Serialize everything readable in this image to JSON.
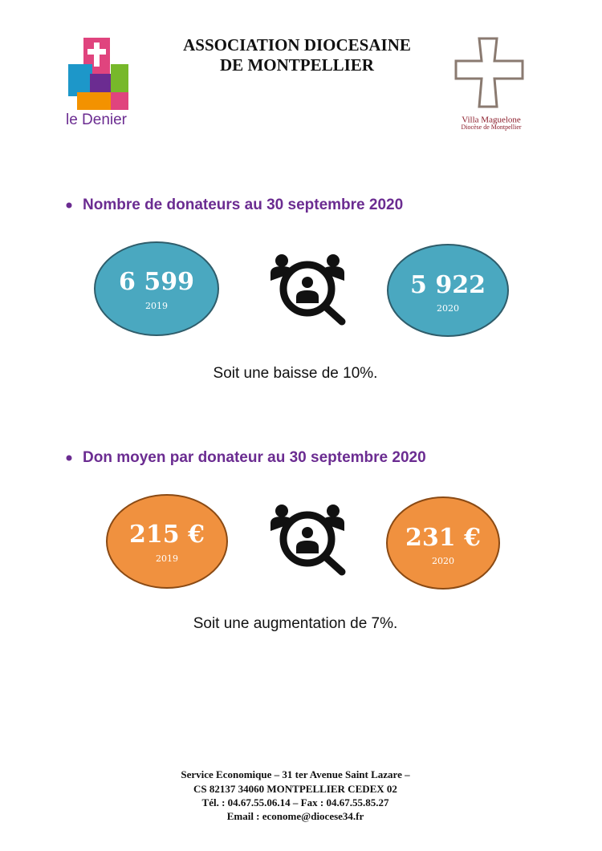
{
  "header": {
    "title_lines": [
      "ASSOCIATION DIOCESAINE",
      "DE MONTPELLIER"
    ],
    "left_logo": "le Denier",
    "right_logo": {
      "name": "Villa Maguelone",
      "subtitle": "Diocèse de Montpellier"
    }
  },
  "sections": [
    {
      "heading": "Nombre de donateurs au 30 septembre 2020",
      "left": {
        "value": "6 599",
        "year": "2019"
      },
      "right": {
        "value": "5 922",
        "year": "2020"
      },
      "conclusion": "Soit une baisse de 10%."
    },
    {
      "heading": "Don moyen par donateur au 30 septembre 2020",
      "left": {
        "value": "215 €",
        "year": "2019"
      },
      "right": {
        "value": "231 €",
        "year": "2020"
      },
      "conclusion": "Soit une augmentation de 7%."
    }
  ],
  "footer": {
    "lines": [
      "Service Economique – 31 ter Avenue Saint Lazare –",
      "CS 82137  34060 MONTPELLIER CEDEX 02",
      "Tél. : 04.67.55.06.14 – Fax : 04.67.55.85.27",
      "Email : econome@diocese34.fr"
    ]
  }
}
